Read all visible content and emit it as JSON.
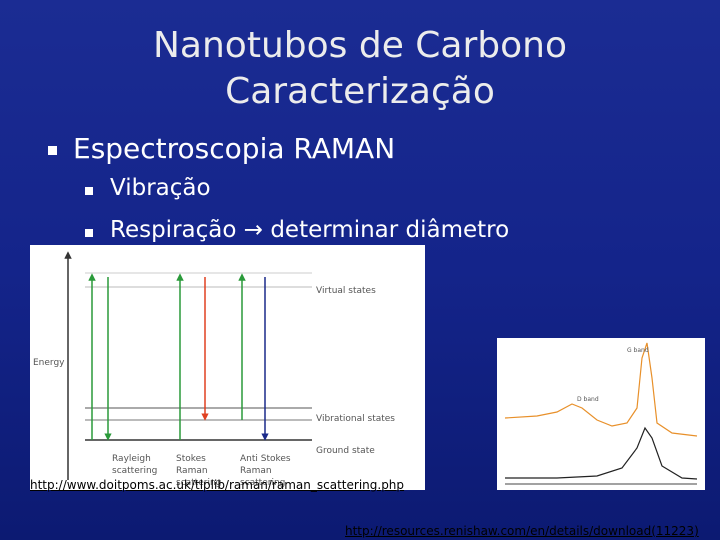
{
  "title": [
    "Nanotubos de Carbono",
    "Caracterização"
  ],
  "bullets": [
    {
      "text": "Espectroscopia RAMAN",
      "sub": [
        "Vibração",
        "Respiração → determinar diâmetro"
      ]
    }
  ],
  "diagram": {
    "virtual": "Virtual states",
    "energy": "Energy",
    "vibrational": "Vibrational states",
    "ground": "Ground state",
    "rayleigh": [
      "Rayleigh",
      "scattering"
    ],
    "stokes": [
      "Stokes",
      "Raman",
      "scattering"
    ],
    "anti": [
      "Anti Stokes",
      "Raman",
      "scattering"
    ]
  },
  "spectrum": {
    "g_band": "G band",
    "d_band": "D band"
  },
  "sources": [
    "http://www.doitpoms.ac.uk/tlplib/raman/raman_scattering.php",
    "http://resources.renishaw.com/en/details/download(11223)"
  ]
}
